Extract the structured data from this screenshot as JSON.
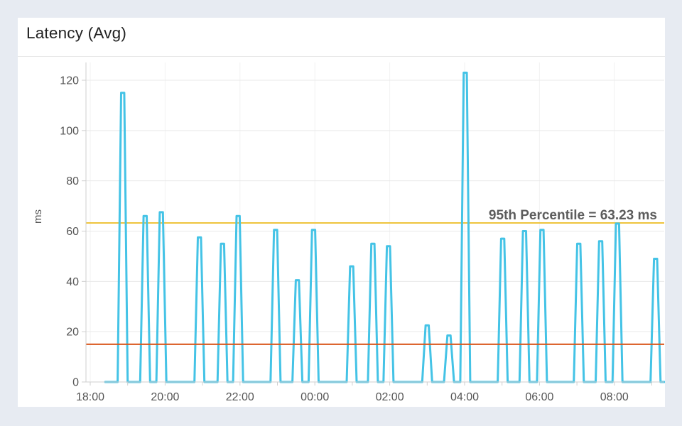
{
  "page": {
    "background": "#e7ebf2"
  },
  "card": {
    "title": "Latency (Avg)",
    "background": "#ffffff"
  },
  "chart_data": {
    "type": "line",
    "title": "Latency (Avg)",
    "xlabel": "",
    "ylabel": "ms",
    "ylim": [
      0,
      127
    ],
    "yticks": [
      0,
      20,
      40,
      60,
      80,
      100,
      120
    ],
    "xlim_minutes_from_1800": [
      -7,
      920
    ],
    "x_ticks": [
      {
        "minutes": 0,
        "label": "18:00"
      },
      {
        "minutes": 120,
        "label": "20:00"
      },
      {
        "minutes": 240,
        "label": "22:00"
      },
      {
        "minutes": 360,
        "label": "00:00"
      },
      {
        "minutes": 480,
        "label": "02:00"
      },
      {
        "minutes": 600,
        "label": "04:00"
      },
      {
        "minutes": 720,
        "label": "06:00"
      },
      {
        "minutes": 840,
        "label": "08:00"
      }
    ],
    "x_minor_tick_every_minutes": 60,
    "grid": {
      "horizontal": true,
      "vertical": true
    },
    "legend": "none",
    "series": [
      {
        "name": "latency-avg",
        "color": "#44c3e6",
        "baseline_value": 0,
        "start_minutes": 24,
        "end_minutes": 920,
        "spike_width_minutes": {
          "base_half": 8,
          "top_half": 2.5
        },
        "spikes": [
          {
            "time": "18:52",
            "minutes": 52,
            "value": 115
          },
          {
            "time": "19:28",
            "minutes": 88,
            "value": 66
          },
          {
            "time": "19:54",
            "minutes": 114,
            "value": 67.5
          },
          {
            "time": "20:55",
            "minutes": 175,
            "value": 57.5
          },
          {
            "time": "21:32",
            "minutes": 212,
            "value": 55
          },
          {
            "time": "21:57",
            "minutes": 237,
            "value": 66
          },
          {
            "time": "22:57",
            "minutes": 297,
            "value": 60.5
          },
          {
            "time": "23:32",
            "minutes": 332,
            "value": 40.5
          },
          {
            "time": "23:58",
            "minutes": 358,
            "value": 60.5
          },
          {
            "time": "00:59",
            "minutes": 419,
            "value": 46
          },
          {
            "time": "01:33",
            "minutes": 453,
            "value": 55
          },
          {
            "time": "01:58",
            "minutes": 478,
            "value": 54
          },
          {
            "time": "03:00",
            "minutes": 540,
            "value": 22.5
          },
          {
            "time": "03:35",
            "minutes": 575,
            "value": 18.5
          },
          {
            "time": "04:01",
            "minutes": 601,
            "value": 123
          },
          {
            "time": "05:01",
            "minutes": 661,
            "value": 57
          },
          {
            "time": "05:36",
            "minutes": 696,
            "value": 60
          },
          {
            "time": "06:04",
            "minutes": 724,
            "value": 60.5
          },
          {
            "time": "07:03",
            "minutes": 783,
            "value": 55
          },
          {
            "time": "07:38",
            "minutes": 818,
            "value": 56
          },
          {
            "time": "08:05",
            "minutes": 845,
            "value": 63
          },
          {
            "time": "09:06",
            "minutes": 906,
            "value": 49
          }
        ]
      }
    ],
    "thresholds": [
      {
        "name": "p95",
        "value": 63.23,
        "color": "#eec43d",
        "label": "95th Percentile = 63.23 ms",
        "label_color": "#5c5c5c",
        "draw_over_series": false
      },
      {
        "name": "lower-threshold",
        "value": 15,
        "color": "#d9571c",
        "label": "",
        "draw_over_series": true
      }
    ],
    "axis_colors": {
      "axis_line": "#cfcfcf",
      "tick": "#cfcfcf",
      "tick_label": "#555555",
      "h_grid": "#e9e9e9",
      "v_grid": "#f2f2f2"
    }
  }
}
